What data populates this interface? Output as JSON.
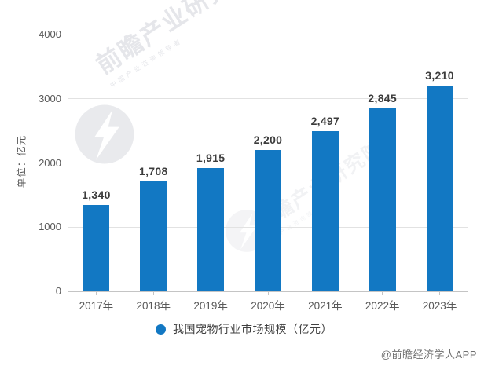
{
  "chart_data": {
    "type": "bar",
    "title": "",
    "categories": [
      "2017年",
      "2018年",
      "2019年",
      "2020年",
      "2021年",
      "2022年",
      "2023年"
    ],
    "values": [
      1340,
      1708,
      1915,
      2200,
      2497,
      2845,
      3210
    ],
    "value_labels": [
      "1,340",
      "1,708",
      "1,915",
      "2,200",
      "2,497",
      "2,845",
      "3,210"
    ],
    "xlabel": "",
    "ylabel": "单位：亿元",
    "ylim": [
      0,
      4000
    ],
    "ytick_values": [
      0,
      1000,
      2000,
      3000,
      4000
    ],
    "ytick_labels": [
      "0",
      "1000",
      "2000",
      "3000",
      "4000"
    ],
    "grid": true,
    "legend": {
      "label": "我国宠物行业市场规模（亿元）",
      "position": "bottom"
    },
    "bar_color": "#1278c3",
    "gridline_color": "#e2e2e2",
    "axis_line_color": "#c4c4c4",
    "value_label_color": "#3c3c3c",
    "tick_label_color": "#595959"
  },
  "watermark": {
    "brand": "前瞻产业研究院",
    "tagline": "中国产业咨询领导者",
    "logo": "forward-swoosh-logo"
  },
  "footer": {
    "credit": "@前瞻经济学人APP"
  }
}
